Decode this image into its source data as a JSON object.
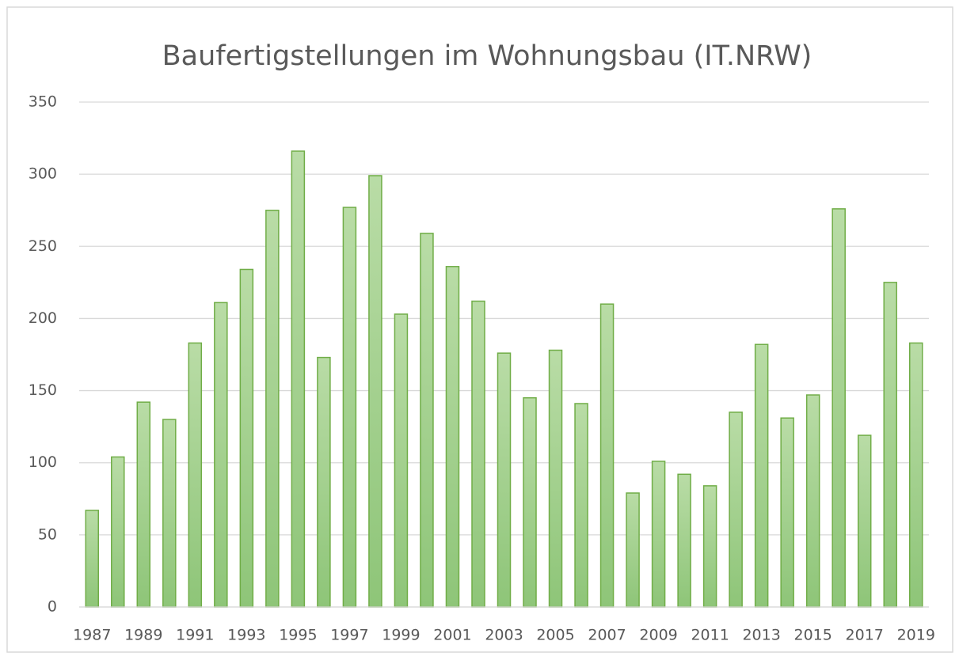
{
  "chart_data": {
    "type": "bar",
    "title": "Baufertigstellungen im Wohnungsbau (IT.NRW)",
    "categories": [
      "1987",
      null,
      "1989",
      null,
      "1991",
      null,
      "1993",
      null,
      "1995",
      null,
      "1997",
      null,
      "1999",
      null,
      "2001",
      null,
      "2003",
      null,
      "2005",
      null,
      "2007",
      null,
      "2009",
      null,
      "2011",
      null,
      "2013",
      null,
      "2015",
      null,
      "2017",
      null,
      "2019"
    ],
    "values": [
      67,
      104,
      142,
      130,
      183,
      211,
      234,
      275,
      316,
      173,
      277,
      299,
      203,
      259,
      236,
      212,
      176,
      145,
      178,
      141,
      210,
      79,
      101,
      92,
      84,
      135,
      182,
      131,
      147,
      276,
      119,
      225,
      183
    ],
    "color": "#70ad47",
    "ylim": [
      0,
      350
    ],
    "yticks": [
      0,
      50,
      100,
      150,
      200,
      250,
      300,
      350
    ],
    "grid": true
  }
}
